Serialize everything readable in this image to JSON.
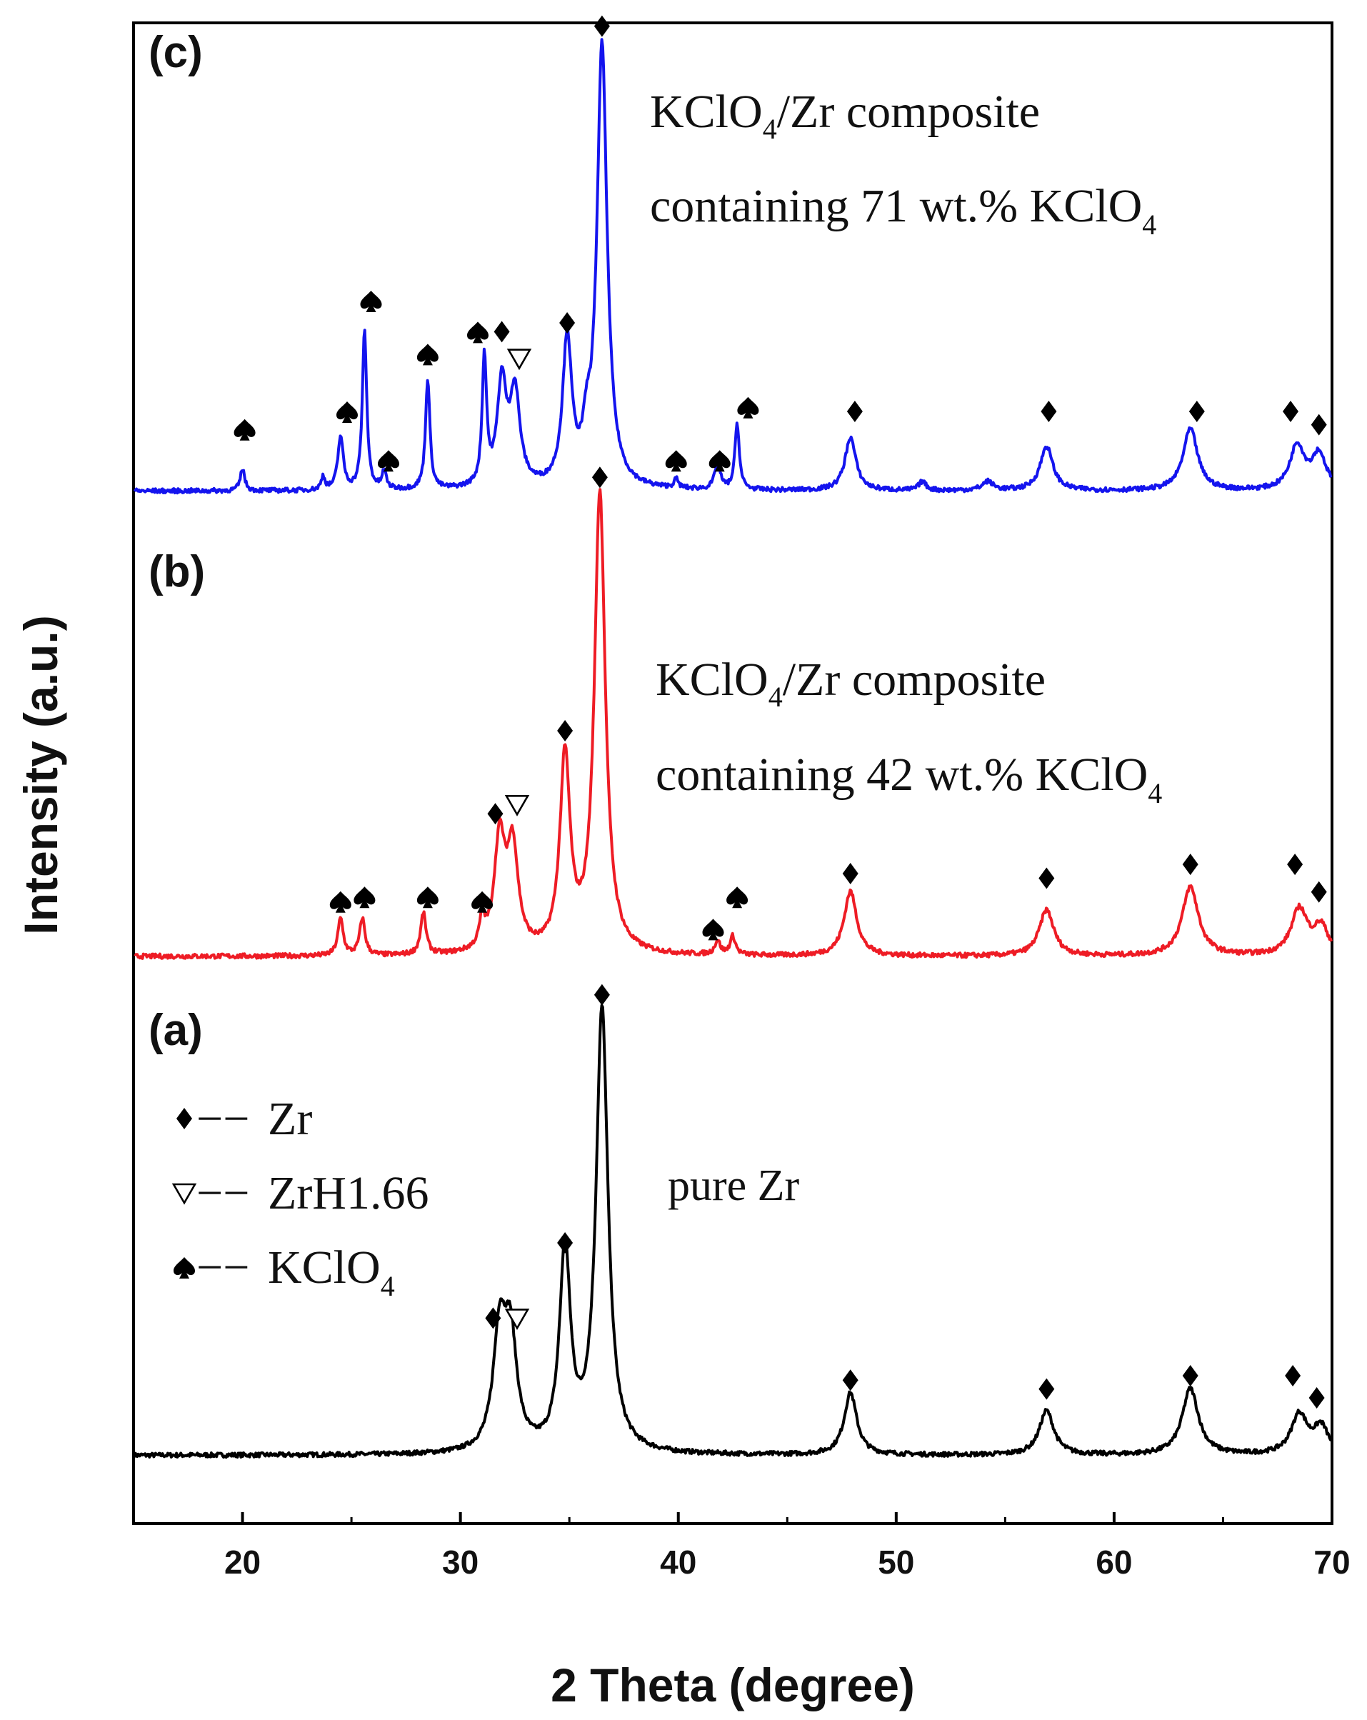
{
  "chart_data": {
    "type": "line",
    "title": "",
    "xlabel": "2 Theta (degree)",
    "ylabel": "Intensity (a.u.)",
    "xlim": [
      15,
      70
    ],
    "xticks": [
      20,
      30,
      40,
      50,
      60,
      70
    ],
    "xtick_labels": [
      "20",
      "30",
      "40",
      "50",
      "60",
      "70"
    ],
    "y_ticks_shown": false,
    "legend": {
      "placement": "lower-left inside panel (a)",
      "entries": [
        {
          "marker": "diamond",
          "label": "Zr"
        },
        {
          "marker": "triangle-down",
          "label": "ZrH1.66"
        },
        {
          "marker": "spade",
          "label": "KClO",
          "subscript": "4"
        }
      ]
    },
    "series": [
      {
        "name": "(a) pure Zr",
        "tag": "(a)",
        "color": "#000000",
        "annotation": [
          {
            "text": "pure Zr",
            "sub": ""
          }
        ],
        "baseline": 2,
        "peaks": [
          {
            "x": 31.8,
            "height": 26,
            "width": 0.35
          },
          {
            "x": 32.3,
            "height": 24,
            "width": 0.35
          },
          {
            "x": 34.8,
            "height": 45,
            "width": 0.3
          },
          {
            "x": 36.5,
            "height": 100,
            "width": 0.33
          },
          {
            "x": 47.9,
            "height": 14,
            "width": 0.35
          },
          {
            "x": 56.9,
            "height": 10,
            "width": 0.4
          },
          {
            "x": 63.5,
            "height": 15,
            "width": 0.45
          },
          {
            "x": 68.5,
            "height": 9,
            "width": 0.45
          },
          {
            "x": 69.5,
            "height": 6,
            "width": 0.4
          }
        ],
        "markers": [
          {
            "x": 31.5,
            "y": 33,
            "symbol": "diamond"
          },
          {
            "x": 32.6,
            "y": 33,
            "symbol": "triangle-down"
          },
          {
            "x": 34.8,
            "y": 50,
            "symbol": "diamond"
          },
          {
            "x": 36.5,
            "y": 106,
            "symbol": "diamond"
          },
          {
            "x": 47.9,
            "y": 19,
            "symbol": "diamond"
          },
          {
            "x": 56.9,
            "y": 17,
            "symbol": "diamond"
          },
          {
            "x": 63.5,
            "y": 20,
            "symbol": "diamond"
          },
          {
            "x": 68.2,
            "y": 20,
            "symbol": "diamond"
          },
          {
            "x": 69.3,
            "y": 15,
            "symbol": "diamond"
          }
        ]
      },
      {
        "name": "(b) KClO4/Zr composite containing 42 wt.% KClO4",
        "tag": "(b)",
        "color": "#ee1c25",
        "annotation": [
          {
            "text": "KClO",
            "sub": "4",
            "rest": "/Zr composite"
          },
          {
            "text": "containing 42 wt.% KClO",
            "sub": "4",
            "rest": ""
          }
        ],
        "baseline": 2,
        "peaks": [
          {
            "x": 24.5,
            "height": 8,
            "width": 0.15
          },
          {
            "x": 25.5,
            "height": 8,
            "width": 0.15
          },
          {
            "x": 28.3,
            "height": 9,
            "width": 0.15
          },
          {
            "x": 31.0,
            "height": 6,
            "width": 0.15
          },
          {
            "x": 31.8,
            "height": 24,
            "width": 0.3
          },
          {
            "x": 32.4,
            "height": 22,
            "width": 0.3
          },
          {
            "x": 34.8,
            "height": 42,
            "width": 0.28
          },
          {
            "x": 36.4,
            "height": 100,
            "width": 0.3
          },
          {
            "x": 41.8,
            "height": 3,
            "width": 0.15
          },
          {
            "x": 42.5,
            "height": 4,
            "width": 0.15
          },
          {
            "x": 47.9,
            "height": 14,
            "width": 0.35
          },
          {
            "x": 56.9,
            "height": 10,
            "width": 0.4
          },
          {
            "x": 63.5,
            "height": 15,
            "width": 0.45
          },
          {
            "x": 68.5,
            "height": 10,
            "width": 0.45
          },
          {
            "x": 69.5,
            "height": 6,
            "width": 0.4
          }
        ],
        "markers": [
          {
            "x": 24.5,
            "y": 14,
            "symbol": "spade"
          },
          {
            "x": 25.6,
            "y": 15,
            "symbol": "spade"
          },
          {
            "x": 28.5,
            "y": 15,
            "symbol": "spade"
          },
          {
            "x": 31.0,
            "y": 14,
            "symbol": "spade"
          },
          {
            "x": 31.6,
            "y": 33,
            "symbol": "diamond"
          },
          {
            "x": 32.6,
            "y": 35,
            "symbol": "triangle-down"
          },
          {
            "x": 34.8,
            "y": 51,
            "symbol": "diamond"
          },
          {
            "x": 36.4,
            "y": 106,
            "symbol": "diamond"
          },
          {
            "x": 41.6,
            "y": 8,
            "symbol": "spade"
          },
          {
            "x": 42.7,
            "y": 15,
            "symbol": "spade"
          },
          {
            "x": 47.9,
            "y": 20,
            "symbol": "diamond"
          },
          {
            "x": 56.9,
            "y": 19,
            "symbol": "diamond"
          },
          {
            "x": 63.5,
            "y": 22,
            "symbol": "diamond"
          },
          {
            "x": 68.3,
            "y": 22,
            "symbol": "diamond"
          },
          {
            "x": 69.4,
            "y": 16,
            "symbol": "diamond"
          }
        ]
      },
      {
        "name": "(c) KClO4/Zr composite containing 71 wt.% KClO4",
        "tag": "(c)",
        "color": "#1414ee",
        "annotation": [
          {
            "text": "KClO",
            "sub": "4",
            "rest": "/Zr composite"
          },
          {
            "text": "containing 71 wt.% KClO",
            "sub": "4",
            "rest": ""
          }
        ],
        "baseline": 2,
        "peaks": [
          {
            "x": 20.0,
            "height": 5,
            "width": 0.12
          },
          {
            "x": 23.7,
            "height": 3,
            "width": 0.1
          },
          {
            "x": 24.5,
            "height": 12,
            "width": 0.15
          },
          {
            "x": 25.6,
            "height": 36,
            "width": 0.12
          },
          {
            "x": 26.5,
            "height": 4,
            "width": 0.12
          },
          {
            "x": 28.5,
            "height": 25,
            "width": 0.12
          },
          {
            "x": 31.1,
            "height": 29,
            "width": 0.12
          },
          {
            "x": 31.9,
            "height": 23,
            "width": 0.25
          },
          {
            "x": 32.5,
            "height": 21,
            "width": 0.28
          },
          {
            "x": 34.9,
            "height": 33,
            "width": 0.25
          },
          {
            "x": 35.8,
            "height": 8,
            "width": 0.2
          },
          {
            "x": 36.5,
            "height": 100,
            "width": 0.28
          },
          {
            "x": 39.9,
            "height": 2,
            "width": 0.12
          },
          {
            "x": 41.8,
            "height": 6,
            "width": 0.15
          },
          {
            "x": 42.7,
            "height": 15,
            "width": 0.12
          },
          {
            "x": 47.9,
            "height": 12,
            "width": 0.3
          },
          {
            "x": 51.2,
            "height": 2,
            "width": 0.2
          },
          {
            "x": 54.2,
            "height": 2,
            "width": 0.3
          },
          {
            "x": 56.9,
            "height": 10,
            "width": 0.35
          },
          {
            "x": 63.5,
            "height": 14,
            "width": 0.4
          },
          {
            "x": 68.4,
            "height": 10,
            "width": 0.4
          },
          {
            "x": 69.4,
            "height": 8,
            "width": 0.4
          }
        ],
        "markers": [
          {
            "x": 20.1,
            "y": 16,
            "symbol": "spade"
          },
          {
            "x": 24.8,
            "y": 20,
            "symbol": "spade"
          },
          {
            "x": 25.9,
            "y": 45,
            "symbol": "spade"
          },
          {
            "x": 26.7,
            "y": 9,
            "symbol": "spade"
          },
          {
            "x": 28.5,
            "y": 33,
            "symbol": "spade"
          },
          {
            "x": 30.8,
            "y": 38,
            "symbol": "spade"
          },
          {
            "x": 31.9,
            "y": 38,
            "symbol": "diamond"
          },
          {
            "x": 32.7,
            "y": 32,
            "symbol": "triangle-down"
          },
          {
            "x": 34.9,
            "y": 40,
            "symbol": "diamond"
          },
          {
            "x": 36.5,
            "y": 107,
            "symbol": "diamond"
          },
          {
            "x": 39.9,
            "y": 9,
            "symbol": "spade"
          },
          {
            "x": 41.9,
            "y": 9,
            "symbol": "spade"
          },
          {
            "x": 43.2,
            "y": 21,
            "symbol": "spade"
          },
          {
            "x": 48.1,
            "y": 20,
            "symbol": "diamond"
          },
          {
            "x": 57.0,
            "y": 20,
            "symbol": "diamond"
          },
          {
            "x": 63.8,
            "y": 20,
            "symbol": "diamond"
          },
          {
            "x": 68.1,
            "y": 20,
            "symbol": "diamond"
          },
          {
            "x": 69.4,
            "y": 17,
            "symbol": "diamond"
          }
        ]
      }
    ]
  }
}
